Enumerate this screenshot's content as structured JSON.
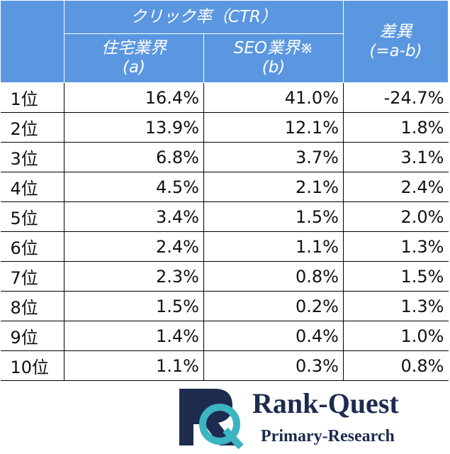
{
  "header": {
    "group": "クリック率（CTR）",
    "columns": [
      {
        "label": "住宅業界",
        "sub": "(a)"
      },
      {
        "label": "SEO業界※",
        "sub": "(b)"
      }
    ],
    "diff": {
      "label": "差異",
      "sub": "(=a-b)"
    }
  },
  "table": {
    "rows": [
      [
        "1位",
        "16.4%",
        "41.0%",
        "-24.7%"
      ],
      [
        "2位",
        "13.9%",
        "12.1%",
        "1.8%"
      ],
      [
        "3位",
        "6.8%",
        "3.7%",
        "3.1%"
      ],
      [
        "4位",
        "4.5%",
        "2.1%",
        "2.4%"
      ],
      [
        "5位",
        "3.4%",
        "1.5%",
        "2.0%"
      ],
      [
        "6位",
        "2.4%",
        "1.1%",
        "1.3%"
      ],
      [
        "7位",
        "2.3%",
        "0.8%",
        "1.5%"
      ],
      [
        "8位",
        "1.5%",
        "0.2%",
        "1.3%"
      ],
      [
        "9位",
        "1.4%",
        "0.4%",
        "1.0%"
      ],
      [
        "10位",
        "1.1%",
        "0.3%",
        "0.8%"
      ]
    ]
  },
  "logo": {
    "name": "Rank-Quest",
    "tagline": "Primary-Research"
  }
}
